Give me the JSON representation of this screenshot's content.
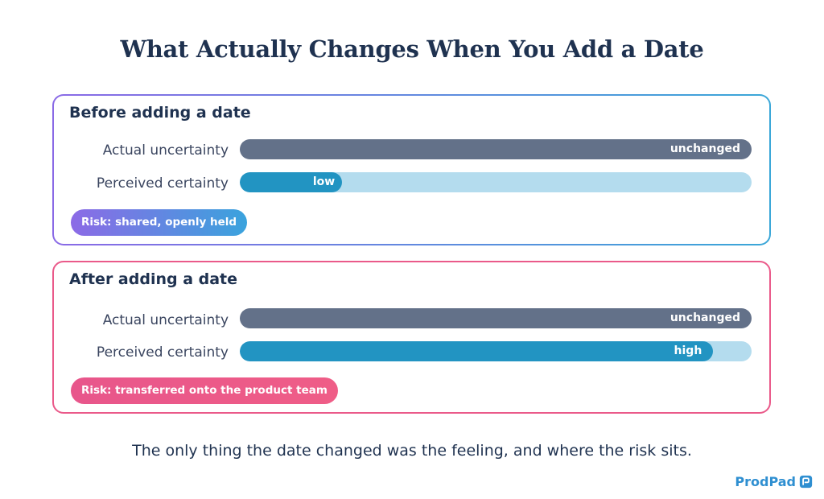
{
  "title": "What Actually Changes When You Add a Date",
  "panels": [
    {
      "heading": "Before adding a date",
      "rows": [
        {
          "label": "Actual uncertainty",
          "value_label": "unchanged",
          "fill": 1.0
        },
        {
          "label": "Perceived certainty",
          "value_label": "low",
          "fill": 0.2
        }
      ],
      "risk": "Risk: shared, openly held"
    },
    {
      "heading": "After adding a date",
      "rows": [
        {
          "label": "Actual uncertainty",
          "value_label": "unchanged",
          "fill": 1.0
        },
        {
          "label": "Perceived certainty",
          "value_label": "high",
          "fill": 0.925
        }
      ],
      "risk": "Risk: transferred onto the product team"
    }
  ],
  "footer": "The only thing the date changed was the feeling, and where the risk sits.",
  "brand": {
    "name": "ProdPad",
    "icon": "prodpad-logo-icon",
    "color": "#2f8fd1"
  },
  "colors": {
    "actual_bar": "#637189",
    "perceived_track": "#b4dcee",
    "perceived_fill": "#2294c2",
    "before_accent": "#8a6ae6",
    "after_accent": "#ea5a8a"
  }
}
